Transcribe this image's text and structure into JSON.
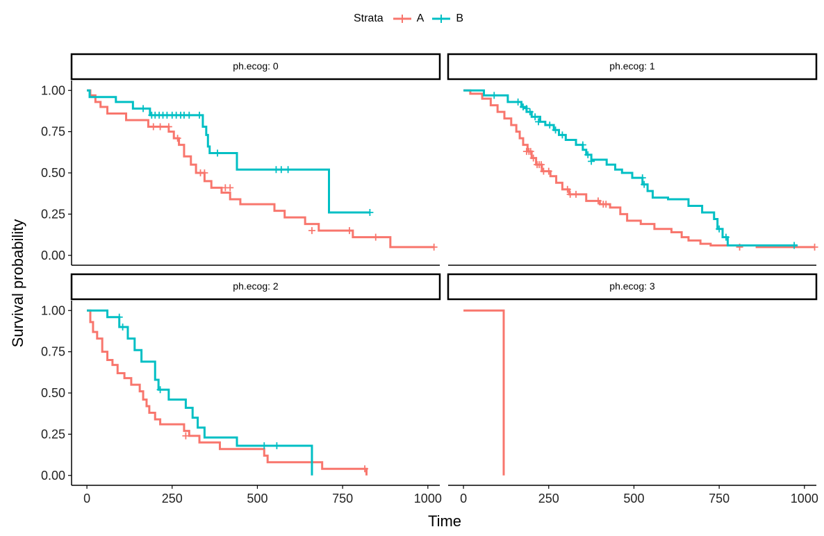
{
  "legend": {
    "title": "Strata",
    "entries": [
      {
        "label": "A",
        "color": "#F8766D"
      },
      {
        "label": "B",
        "color": "#00BFC4"
      }
    ]
  },
  "chart_data": {
    "type": "line",
    "subtype": "kaplan-meier step",
    "xlabel": "Time",
    "ylabel": "Survival probability",
    "xlim": [
      -45,
      1035
    ],
    "ylim": [
      -0.06,
      1.06
    ],
    "xticks": [
      0,
      250,
      500,
      750,
      1000
    ],
    "xtick_labels": [
      "0",
      "250",
      "500",
      "750",
      "1000"
    ],
    "yticks": [
      0,
      0.25,
      0.5,
      0.75,
      1
    ],
    "ytick_labels": [
      "0.00",
      "0.25",
      "0.50",
      "0.75",
      "1.00"
    ],
    "legend_position": "top",
    "panels": [
      {
        "strip": "ph.ecog: 0",
        "series": [
          {
            "name": "A",
            "color": "#F8766D",
            "steps": [
              [
                0,
                1
              ],
              [
                10,
                0.97
              ],
              [
                25,
                0.93
              ],
              [
                40,
                0.9
              ],
              [
                60,
                0.86
              ],
              [
                115,
                0.82
              ],
              [
                180,
                0.78
              ],
              [
                240,
                0.75
              ],
              [
                255,
                0.71
              ],
              [
                270,
                0.67
              ],
              [
                285,
                0.6
              ],
              [
                305,
                0.55
              ],
              [
                320,
                0.5
              ],
              [
                345,
                0.45
              ],
              [
                365,
                0.41
              ],
              [
                395,
                0.38
              ],
              [
                420,
                0.34
              ],
              [
                450,
                0.31
              ],
              [
                550,
                0.27
              ],
              [
                580,
                0.23
              ],
              [
                640,
                0.19
              ],
              [
                680,
                0.15
              ],
              [
                780,
                0.11
              ],
              [
                890,
                0.05
              ],
              [
                1020,
                0.05
              ]
            ],
            "censored": [
              [
                195,
                0.78
              ],
              [
                215,
                0.78
              ],
              [
                240,
                0.78
              ],
              [
                266,
                0.71
              ],
              [
                333,
                0.5
              ],
              [
                345,
                0.5
              ],
              [
                406,
                0.41
              ],
              [
                420,
                0.41
              ],
              [
                660,
                0.15
              ],
              [
                770,
                0.15
              ],
              [
                847,
                0.11
              ],
              [
                1018,
                0.05
              ]
            ]
          },
          {
            "name": "B",
            "color": "#00BFC4",
            "steps": [
              [
                0,
                1
              ],
              [
                8,
                0.96
              ],
              [
                85,
                0.93
              ],
              [
                135,
                0.89
              ],
              [
                185,
                0.85
              ],
              [
                340,
                0.78
              ],
              [
                350,
                0.73
              ],
              [
                355,
                0.66
              ],
              [
                360,
                0.62
              ],
              [
                440,
                0.52
              ],
              [
                710,
                0.26
              ],
              [
                830,
                0.26
              ]
            ],
            "censored": [
              [
                165,
                0.89
              ],
              [
                190,
                0.85
              ],
              [
                200,
                0.85
              ],
              [
                212,
                0.85
              ],
              [
                223,
                0.85
              ],
              [
                235,
                0.85
              ],
              [
                250,
                0.85
              ],
              [
                262,
                0.85
              ],
              [
                275,
                0.85
              ],
              [
                285,
                0.85
              ],
              [
                300,
                0.85
              ],
              [
                330,
                0.85
              ],
              [
                383,
                0.62
              ],
              [
                555,
                0.52
              ],
              [
                570,
                0.52
              ],
              [
                590,
                0.52
              ],
              [
                830,
                0.26
              ]
            ]
          }
        ]
      },
      {
        "strip": "ph.ecog: 1",
        "series": [
          {
            "name": "A",
            "color": "#F8766D",
            "steps": [
              [
                0,
                1
              ],
              [
                20,
                0.98
              ],
              [
                55,
                0.95
              ],
              [
                80,
                0.91
              ],
              [
                100,
                0.87
              ],
              [
                120,
                0.83
              ],
              [
                140,
                0.79
              ],
              [
                155,
                0.75
              ],
              [
                165,
                0.71
              ],
              [
                175,
                0.67
              ],
              [
                188,
                0.63
              ],
              [
                200,
                0.59
              ],
              [
                213,
                0.55
              ],
              [
                230,
                0.51
              ],
              [
                255,
                0.48
              ],
              [
                272,
                0.44
              ],
              [
                290,
                0.4
              ],
              [
                310,
                0.37
              ],
              [
                360,
                0.33
              ],
              [
                400,
                0.31
              ],
              [
                430,
                0.29
              ],
              [
                460,
                0.25
              ],
              [
                480,
                0.21
              ],
              [
                520,
                0.19
              ],
              [
                560,
                0.16
              ],
              [
                610,
                0.14
              ],
              [
                640,
                0.11
              ],
              [
                660,
                0.09
              ],
              [
                695,
                0.07
              ],
              [
                725,
                0.06
              ],
              [
                860,
                0.05
              ],
              [
                1030,
                0.05
              ]
            ],
            "censored": [
              [
                185,
                0.63
              ],
              [
                192,
                0.63
              ],
              [
                197,
                0.63
              ],
              [
                205,
                0.59
              ],
              [
                216,
                0.55
              ],
              [
                222,
                0.55
              ],
              [
                228,
                0.55
              ],
              [
                235,
                0.51
              ],
              [
                250,
                0.51
              ],
              [
                305,
                0.4
              ],
              [
                313,
                0.37
              ],
              [
                330,
                0.37
              ],
              [
                395,
                0.33
              ],
              [
                410,
                0.31
              ],
              [
                418,
                0.31
              ],
              [
                810,
                0.05
              ],
              [
                1030,
                0.05
              ]
            ]
          },
          {
            "name": "B",
            "color": "#00BFC4",
            "steps": [
              [
                0,
                1
              ],
              [
                60,
                0.97
              ],
              [
                130,
                0.93
              ],
              [
                170,
                0.9
              ],
              [
                185,
                0.87
              ],
              [
                200,
                0.84
              ],
              [
                225,
                0.81
              ],
              [
                240,
                0.79
              ],
              [
                265,
                0.76
              ],
              [
                280,
                0.73
              ],
              [
                300,
                0.7
              ],
              [
                330,
                0.67
              ],
              [
                350,
                0.64
              ],
              [
                360,
                0.61
              ],
              [
                375,
                0.58
              ],
              [
                420,
                0.55
              ],
              [
                445,
                0.52
              ],
              [
                465,
                0.5
              ],
              [
                495,
                0.47
              ],
              [
                525,
                0.43
              ],
              [
                540,
                0.39
              ],
              [
                555,
                0.35
              ],
              [
                600,
                0.34
              ],
              [
                660,
                0.3
              ],
              [
                700,
                0.26
              ],
              [
                735,
                0.22
              ],
              [
                745,
                0.16
              ],
              [
                760,
                0.11
              ],
              [
                775,
                0.06
              ],
              [
                980,
                0.06
              ]
            ],
            "censored": [
              [
                90,
                0.97
              ],
              [
                160,
                0.93
              ],
              [
                175,
                0.9
              ],
              [
                185,
                0.89
              ],
              [
                195,
                0.87
              ],
              [
                210,
                0.84
              ],
              [
                220,
                0.81
              ],
              [
                253,
                0.79
              ],
              [
                270,
                0.76
              ],
              [
                290,
                0.73
              ],
              [
                350,
                0.67
              ],
              [
                365,
                0.61
              ],
              [
                375,
                0.57
              ],
              [
                525,
                0.47
              ],
              [
                530,
                0.43
              ],
              [
                750,
                0.16
              ],
              [
                770,
                0.11
              ],
              [
                970,
                0.06
              ]
            ]
          }
        ]
      },
      {
        "strip": "ph.ecog: 2",
        "series": [
          {
            "name": "A",
            "color": "#F8766D",
            "steps": [
              [
                0,
                1
              ],
              [
                10,
                0.93
              ],
              [
                18,
                0.87
              ],
              [
                30,
                0.83
              ],
              [
                45,
                0.75
              ],
              [
                60,
                0.7
              ],
              [
                75,
                0.67
              ],
              [
                90,
                0.62
              ],
              [
                110,
                0.59
              ],
              [
                130,
                0.55
              ],
              [
                155,
                0.51
              ],
              [
                165,
                0.46
              ],
              [
                175,
                0.42
              ],
              [
                183,
                0.38
              ],
              [
                200,
                0.34
              ],
              [
                215,
                0.31
              ],
              [
                285,
                0.27
              ],
              [
                300,
                0.24
              ],
              [
                330,
                0.2
              ],
              [
                390,
                0.16
              ],
              [
                520,
                0.12
              ],
              [
                530,
                0.08
              ],
              [
                690,
                0.04
              ],
              [
                820,
                0
              ]
            ],
            "censored": [
              [
                290,
                0.24
              ],
              [
                815,
                0.04
              ]
            ]
          },
          {
            "name": "B",
            "color": "#00BFC4",
            "steps": [
              [
                0,
                1
              ],
              [
                60,
                0.96
              ],
              [
                95,
                0.9
              ],
              [
                120,
                0.83
              ],
              [
                140,
                0.76
              ],
              [
                160,
                0.69
              ],
              [
                200,
                0.58
              ],
              [
                210,
                0.52
              ],
              [
                240,
                0.46
              ],
              [
                290,
                0.41
              ],
              [
                310,
                0.35
              ],
              [
                325,
                0.29
              ],
              [
                345,
                0.23
              ],
              [
                440,
                0.18
              ],
              [
                660,
                0
              ]
            ],
            "censored": [
              [
                95,
                0.96
              ],
              [
                105,
                0.9
              ],
              [
                215,
                0.52
              ],
              [
                520,
                0.18
              ],
              [
                557,
                0.18
              ]
            ]
          }
        ]
      },
      {
        "strip": "ph.ecog: 3",
        "series": [
          {
            "name": "A",
            "color": "#F8766D",
            "steps": [
              [
                0,
                1
              ],
              [
                118,
                0
              ]
            ],
            "censored": []
          }
        ]
      }
    ]
  }
}
